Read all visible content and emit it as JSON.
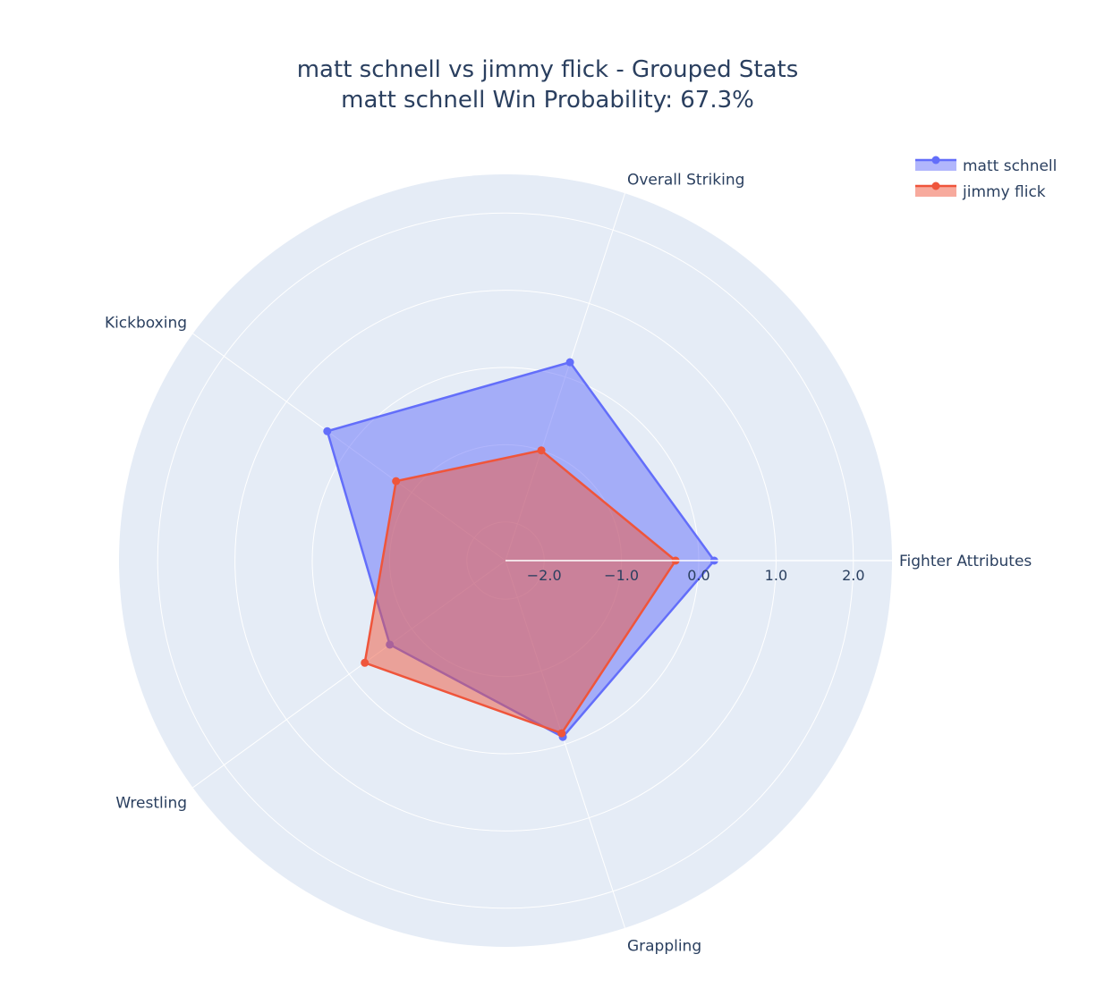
{
  "chart_data": {
    "type": "radar",
    "title": "matt schnell vs jimmy flick - Grouped Stats",
    "subtitle": "matt schnell Win Probability: 67.3%",
    "categories": [
      "Fighter Attributes",
      "Overall Striking",
      "Kickboxing",
      "Wrestling",
      "Grappling"
    ],
    "radial_ticks": [
      -2,
      -1,
      0,
      1,
      2
    ],
    "radial_tick_labels": [
      "−2.0",
      "−1.0",
      "0.0",
      "1.0",
      "2.0"
    ],
    "radial_range": [
      -2.5,
      2.5
    ],
    "grid": true,
    "legend_position": "top-right",
    "series": [
      {
        "name": "matt schnell",
        "values": [
          0.2,
          0.2,
          0.35,
          -0.65,
          -0.1
        ],
        "color": "#636efa"
      },
      {
        "name": "jimmy flick",
        "values": [
          -0.3,
          -1.0,
          -0.75,
          -0.25,
          -0.15
        ],
        "color": "#ef553b"
      }
    ]
  }
}
